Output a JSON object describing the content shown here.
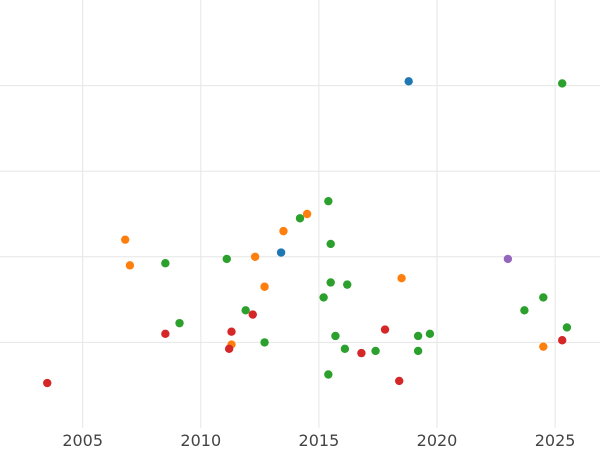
{
  "chart_data": {
    "type": "scatter",
    "title": "",
    "xlabel": "",
    "ylabel": "",
    "xlim": [
      2001.5,
      2026.9
    ],
    "ylim": [
      0,
      10
    ],
    "grid": true,
    "x_ticks": [
      2005,
      2010,
      2015,
      2020,
      2025
    ],
    "x_tick_labels": [
      "2005",
      "2010",
      "2015",
      "2020",
      "2025"
    ],
    "y_grid_values": [
      2.0,
      4.0,
      6.0,
      8.0
    ],
    "series": [
      {
        "color": "#1f77b4",
        "points": [
          {
            "x": 2018.8,
            "y": 8.1
          },
          {
            "x": 2013.4,
            "y": 4.1
          }
        ]
      },
      {
        "color": "#ff7f0e",
        "points": [
          {
            "x": 2006.8,
            "y": 4.4
          },
          {
            "x": 2007.0,
            "y": 3.8
          },
          {
            "x": 2012.3,
            "y": 4.0
          },
          {
            "x": 2012.7,
            "y": 3.3
          },
          {
            "x": 2013.5,
            "y": 4.6
          },
          {
            "x": 2014.5,
            "y": 5.0
          },
          {
            "x": 2018.5,
            "y": 3.5
          },
          {
            "x": 2011.3,
            "y": 1.95
          },
          {
            "x": 2024.5,
            "y": 1.9
          }
        ]
      },
      {
        "color": "#2ca02c",
        "points": [
          {
            "x": 2025.3,
            "y": 8.05
          },
          {
            "x": 2015.4,
            "y": 5.3
          },
          {
            "x": 2014.2,
            "y": 4.9
          },
          {
            "x": 2015.5,
            "y": 4.3
          },
          {
            "x": 2008.5,
            "y": 3.85
          },
          {
            "x": 2011.1,
            "y": 3.95
          },
          {
            "x": 2015.5,
            "y": 3.4
          },
          {
            "x": 2016.2,
            "y": 3.35
          },
          {
            "x": 2015.2,
            "y": 3.05
          },
          {
            "x": 2009.1,
            "y": 2.45
          },
          {
            "x": 2011.9,
            "y": 2.75
          },
          {
            "x": 2012.7,
            "y": 2.0
          },
          {
            "x": 2015.7,
            "y": 2.15
          },
          {
            "x": 2016.1,
            "y": 1.85
          },
          {
            "x": 2017.4,
            "y": 1.8
          },
          {
            "x": 2019.2,
            "y": 2.15
          },
          {
            "x": 2019.7,
            "y": 2.2
          },
          {
            "x": 2019.2,
            "y": 1.8
          },
          {
            "x": 2015.4,
            "y": 1.25
          },
          {
            "x": 2023.7,
            "y": 2.75
          },
          {
            "x": 2024.5,
            "y": 3.05
          },
          {
            "x": 2025.5,
            "y": 2.35
          }
        ]
      },
      {
        "color": "#d62728",
        "points": [
          {
            "x": 2003.5,
            "y": 1.05
          },
          {
            "x": 2008.5,
            "y": 2.2
          },
          {
            "x": 2011.3,
            "y": 2.25
          },
          {
            "x": 2011.2,
            "y": 1.85
          },
          {
            "x": 2012.2,
            "y": 2.65
          },
          {
            "x": 2016.8,
            "y": 1.75
          },
          {
            "x": 2017.8,
            "y": 2.3
          },
          {
            "x": 2018.4,
            "y": 1.1
          },
          {
            "x": 2025.3,
            "y": 2.05
          }
        ]
      },
      {
        "color": "#9467bd",
        "points": [
          {
            "x": 2023.0,
            "y": 3.95
          }
        ]
      }
    ]
  }
}
